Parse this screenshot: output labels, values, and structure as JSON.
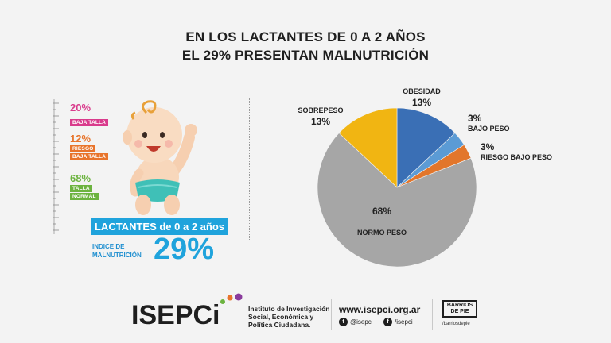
{
  "header": {
    "title_line1": "EN LOS LACTANTES DE 0 A 2 AÑOS",
    "title_line2": "EL 29% PRESENTAN MALNUTRICIÓN"
  },
  "left_panel": {
    "stats": [
      {
        "pct": "20%",
        "tags": [
          "BAJA TALLA"
        ],
        "color": "#d93b8c"
      },
      {
        "pct": "12%",
        "tags": [
          "RIESGO",
          "BAJA TALLA"
        ],
        "color": "#e8742b"
      },
      {
        "pct": "68%",
        "tags": [
          "TALLA",
          "NORMAL"
        ],
        "color": "#6cb33f"
      }
    ],
    "lactantes_label": "LACTANTES de 0 a 2 años",
    "indice_label_line1": "INDICE DE",
    "indice_label_line2": "MALNUTRICIÓN",
    "indice_value": "29%"
  },
  "chart_data": {
    "type": "pie",
    "title": "",
    "slices": [
      {
        "label": "OBESIDAD",
        "value": 13,
        "display": "13%",
        "color": "#3a6fb5"
      },
      {
        "label": "BAJO PESO",
        "value": 3,
        "display": "3%",
        "color": "#5b9bd5"
      },
      {
        "label": "RIESGO BAJO PESO",
        "value": 3,
        "display": "3%",
        "color": "#e2762b"
      },
      {
        "label": "NORMO PESO",
        "value": 68,
        "display": "68%",
        "color": "#a6a6a6"
      },
      {
        "label": "SOBREPESO",
        "value": 13,
        "display": "13%",
        "color": "#f1b512"
      }
    ]
  },
  "footer": {
    "logo_text": "ISEPCi",
    "institute_line1": "Instituto de Investigación",
    "institute_line2": "Social, Económica y",
    "institute_line3": "Política Ciudadana.",
    "website": "www.isepci.org.ar",
    "twitter": "@isepci",
    "facebook": "/isepci",
    "partner_line1": "BARRIOS",
    "partner_line2": "DE PIE",
    "partner_handle": "/barriosdepie"
  }
}
